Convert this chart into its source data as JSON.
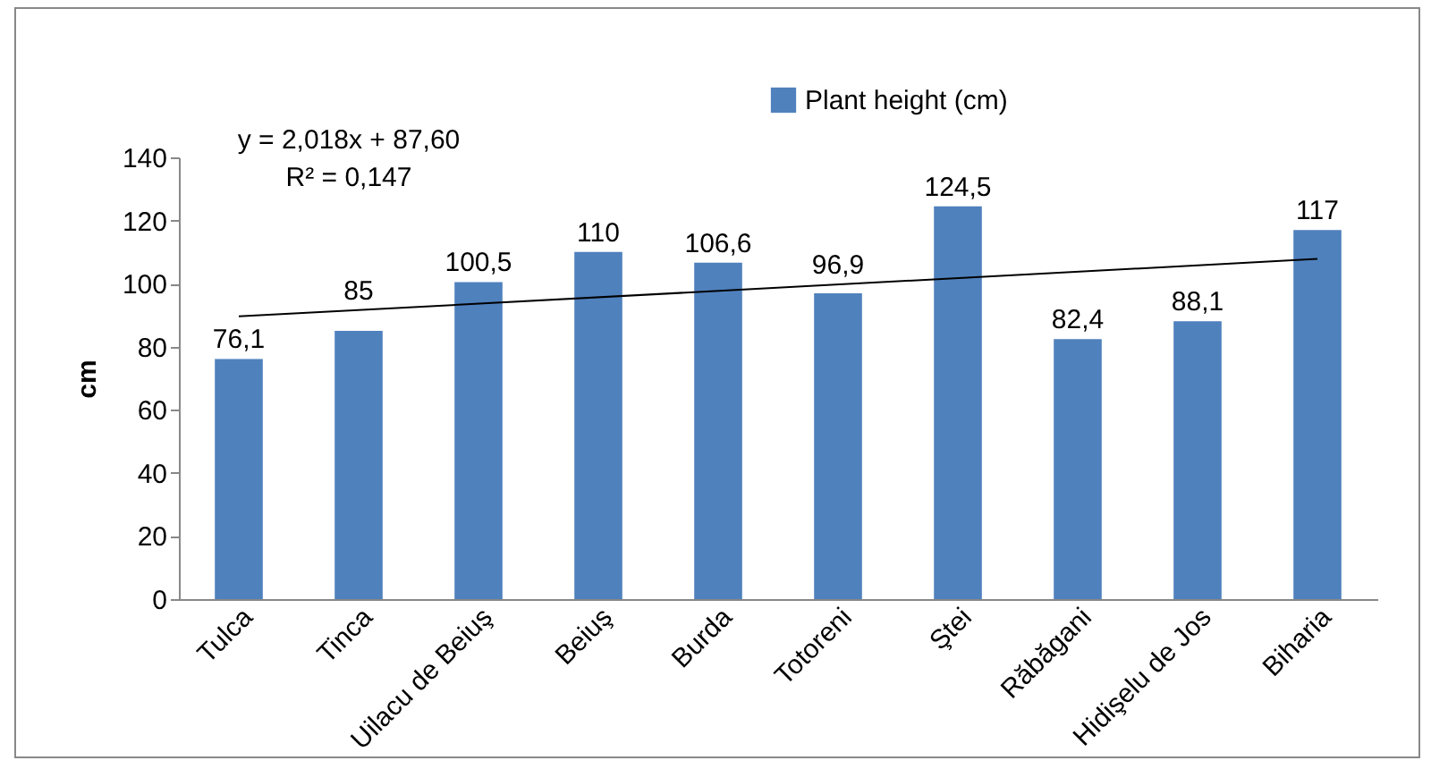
{
  "chart_data": {
    "type": "bar",
    "ylabel": "cm",
    "categories": [
      "Tulca",
      "Tinca",
      "Uilacu de Beiuş",
      "Beiuş",
      "Burda",
      "Totoreni",
      "Ştei",
      "Răbăgani",
      "Hidişelu de Jos",
      "Biharia"
    ],
    "series": [
      {
        "name": "Plant height (cm)",
        "color": "#4f81bd",
        "values": [
          76.1,
          85,
          100.5,
          110,
          106.6,
          96.9,
          124.5,
          82.4,
          88.1,
          117
        ],
        "value_labels": [
          "76,1",
          "85",
          "100,5",
          "110",
          "106,6",
          "96,9",
          "124,5",
          "82,4",
          "88,1",
          "117"
        ]
      },
      {
        "type": "line",
        "color": "#000000",
        "x": [
          "Tulca",
          "Biharia"
        ],
        "values": [
          89.6,
          107.8
        ]
      }
    ],
    "annotations": [
      "y = 2,018x + 87,60",
      "R² = 0,147"
    ],
    "ylim": [
      0,
      140
    ],
    "yticks": [
      0,
      20,
      40,
      60,
      80,
      100,
      120,
      140
    ],
    "grid": false,
    "legend": "top"
  }
}
